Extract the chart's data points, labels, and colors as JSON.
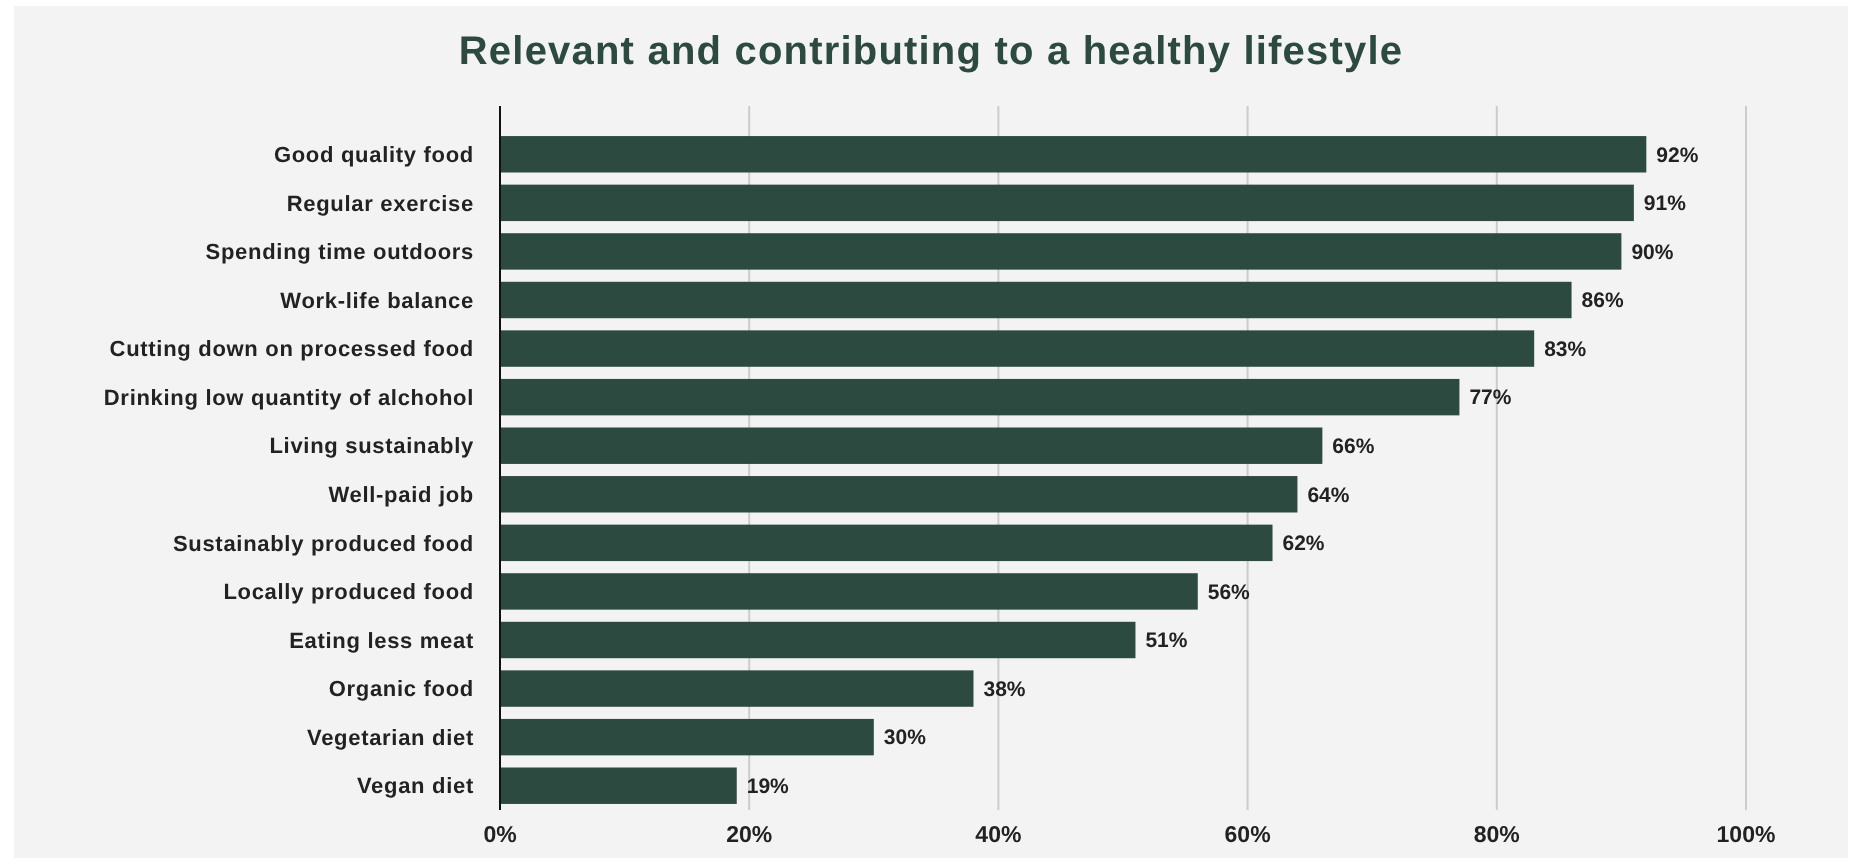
{
  "chart_data": {
    "type": "bar",
    "orientation": "horizontal",
    "title": "Relevant and contributing to a healthy lifestyle",
    "categories": [
      "Good quality food",
      "Regular exercise",
      "Spending time outdoors",
      "Work-life balance",
      "Cutting down on processed food",
      "Drinking low quantity of alchohol",
      "Living sustainably",
      "Well-paid job",
      "Sustainably produced food",
      "Locally produced food",
      "Eating less meat",
      "Organic food",
      "Vegetarian diet",
      "Vegan diet"
    ],
    "values": [
      92,
      91,
      90,
      86,
      83,
      77,
      66,
      64,
      62,
      56,
      51,
      38,
      30,
      19
    ],
    "value_labels": [
      "92%",
      "91%",
      "90%",
      "86%",
      "83%",
      "77%",
      "66%",
      "64%",
      "62%",
      "56%",
      "51%",
      "38%",
      "30%",
      "19%"
    ],
    "color": "#2c4a3f",
    "xlim": [
      0,
      100
    ],
    "xticks": [
      {
        "value": 0,
        "label": "0%"
      },
      {
        "value": 20,
        "label": "20%"
      },
      {
        "value": 40,
        "label": "40%"
      },
      {
        "value": 60,
        "label": "60%"
      },
      {
        "value": 80,
        "label": "80%"
      },
      {
        "value": 100,
        "label": "100%"
      }
    ],
    "grid": "x"
  }
}
